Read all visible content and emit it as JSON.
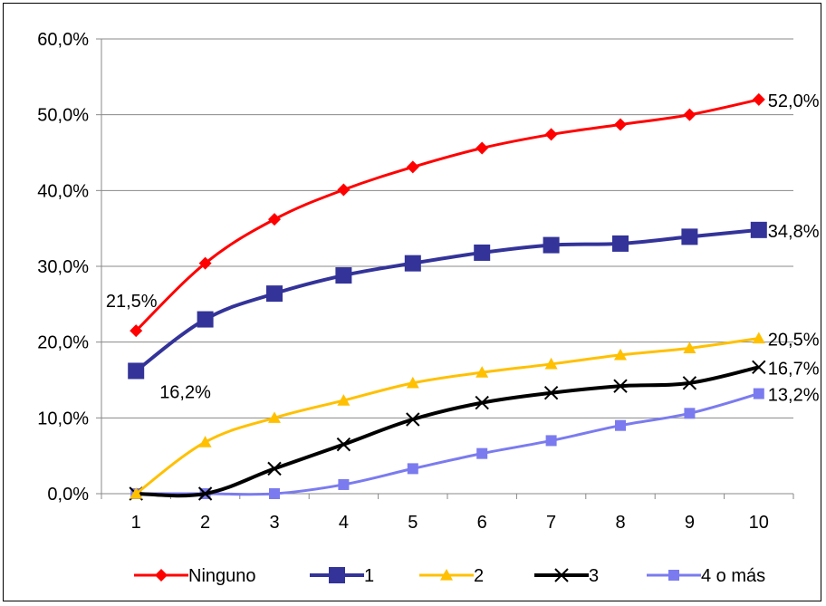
{
  "chart_data": {
    "type": "line",
    "title": "",
    "xlabel": "",
    "ylabel": "",
    "categories": [
      "1",
      "2",
      "3",
      "4",
      "5",
      "6",
      "7",
      "8",
      "9",
      "10"
    ],
    "ylim": [
      0,
      60
    ],
    "yticks": [
      "0,0%",
      "10,0%",
      "20,0%",
      "30,0%",
      "40,0%",
      "50,0%",
      "60,0%"
    ],
    "grid": "horizontal",
    "legend": "bottom",
    "series": [
      {
        "name": "Ninguno",
        "color": "#ff0000",
        "marker": "diamond",
        "values": [
          21.5,
          30.4,
          36.2,
          40.1,
          43.1,
          45.6,
          47.4,
          48.7,
          50.0,
          52.0
        ]
      },
      {
        "name": "1",
        "color": "#333399",
        "marker": "square",
        "values": [
          16.2,
          23.0,
          26.4,
          28.8,
          30.4,
          31.8,
          32.8,
          33.0,
          33.9,
          34.8
        ]
      },
      {
        "name": "2",
        "color": "#ffc000",
        "marker": "triangle",
        "values": [
          0.0,
          6.8,
          10.0,
          12.3,
          14.6,
          16.0,
          17.1,
          18.3,
          19.2,
          20.5
        ]
      },
      {
        "name": "3",
        "color": "#000000",
        "marker": "x",
        "values": [
          0.0,
          0.0,
          3.3,
          6.5,
          9.8,
          12.0,
          13.3,
          14.2,
          14.6,
          16.7
        ]
      },
      {
        "name": "4 o más",
        "color": "#7b7bef",
        "marker": "smallsquare",
        "values": [
          0.0,
          0.0,
          0.0,
          1.2,
          3.3,
          5.3,
          7.0,
          9.0,
          10.6,
          13.2
        ]
      }
    ],
    "data_labels": [
      {
        "series": 0,
        "index": 0,
        "text": "21,5%"
      },
      {
        "series": 0,
        "index": 9,
        "text": "52,0%"
      },
      {
        "series": 1,
        "index": 0,
        "text": "16,2%"
      },
      {
        "series": 1,
        "index": 9,
        "text": "34,8%"
      },
      {
        "series": 2,
        "index": 9,
        "text": "20,5%"
      },
      {
        "series": 3,
        "index": 9,
        "text": "16,7%"
      },
      {
        "series": 4,
        "index": 9,
        "text": "13,2%"
      }
    ]
  }
}
